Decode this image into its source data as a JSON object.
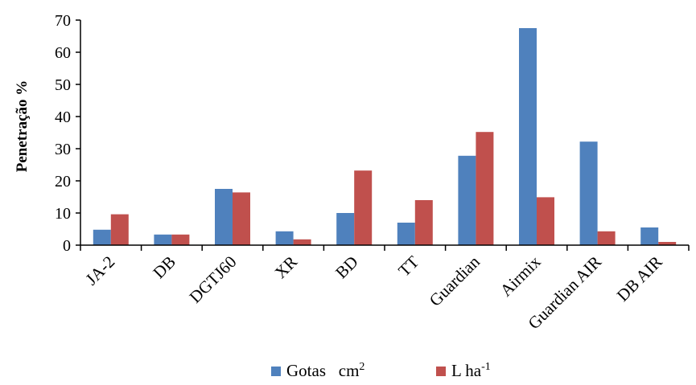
{
  "chart_data": {
    "type": "bar",
    "title": "",
    "xlabel": "",
    "ylabel": "Penetração %",
    "ylim": [
      0,
      70
    ],
    "yticks": [
      "0",
      "10",
      "20",
      "30",
      "40",
      "50",
      "60",
      "70"
    ],
    "grid": false,
    "legend_position": "bottom",
    "categories": [
      "JA-2",
      "DB",
      "DGTJ60",
      "XR",
      "BD",
      "TT",
      "Guardian",
      "Airmix",
      "Guardian AIR",
      "DB AIR"
    ],
    "series": [
      {
        "name": "Gotas cm2",
        "name_base": "Gotas   cm",
        "name_sup": "2",
        "color": "#4f81bd",
        "values": [
          4.8,
          3.3,
          17.5,
          4.3,
          10.0,
          7.0,
          27.8,
          67.5,
          32.2,
          5.5
        ]
      },
      {
        "name": "L ha-1",
        "name_base": "L ha",
        "name_sup": "-1",
        "color": "#c0504d",
        "values": [
          9.6,
          3.3,
          16.4,
          1.8,
          23.2,
          14.0,
          35.2,
          14.9,
          4.3,
          1.0
        ]
      }
    ]
  }
}
